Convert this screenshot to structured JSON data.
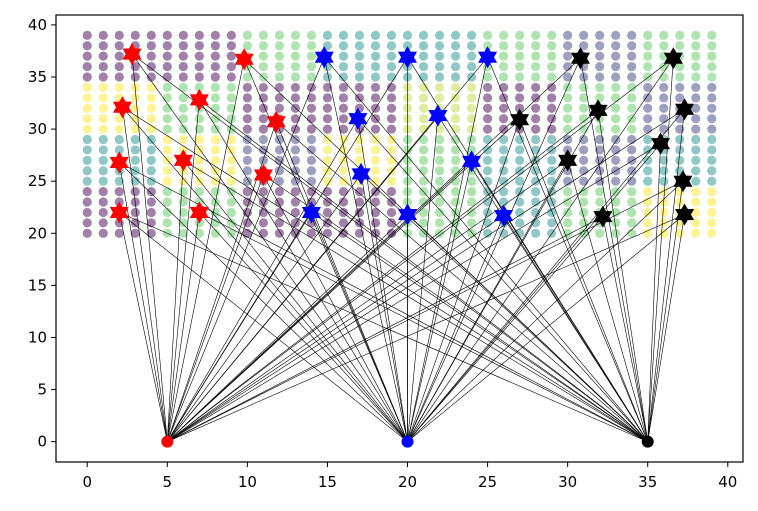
{
  "chart_data": {
    "type": "scatter",
    "title": "",
    "xlabel": "",
    "ylabel": "",
    "xlim": [
      -1.95,
      40.95
    ],
    "ylim": [
      -1.95,
      40.95
    ],
    "xticks": [
      0,
      5,
      10,
      15,
      20,
      25,
      30,
      35,
      40
    ],
    "yticks": [
      0,
      5,
      10,
      15,
      20,
      25,
      30,
      35,
      40
    ],
    "xtick_labels": [
      "0",
      "5",
      "10",
      "15",
      "20",
      "25",
      "30",
      "35",
      "40"
    ],
    "ytick_labels": [
      "0",
      "5",
      "10",
      "15",
      "20",
      "25",
      "30",
      "35",
      "40"
    ],
    "grid": false,
    "legend": "none",
    "background_grid": {
      "x_range": [
        0,
        39
      ],
      "y_range": [
        20,
        39
      ],
      "step": 1,
      "colormap": "viridis",
      "alpha": 0.5,
      "block_size": 5,
      "blocks": [
        {
          "x0": 0,
          "y0": 35,
          "value": 0.0
        },
        {
          "x0": 5,
          "y0": 35,
          "value": 0.0
        },
        {
          "x0": 10,
          "y0": 35,
          "value": 0.75
        },
        {
          "x0": 15,
          "y0": 35,
          "value": 0.5
        },
        {
          "x0": 20,
          "y0": 35,
          "value": 0.5
        },
        {
          "x0": 25,
          "y0": 35,
          "value": 0.75
        },
        {
          "x0": 30,
          "y0": 35,
          "value": 0.2
        },
        {
          "x0": 35,
          "y0": 35,
          "value": 0.75
        },
        {
          "x0": 0,
          "y0": 30,
          "value": 1.0
        },
        {
          "x0": 5,
          "y0": 30,
          "value": 0.75
        },
        {
          "x0": 10,
          "y0": 30,
          "value": 0.0
        },
        {
          "x0": 15,
          "y0": 30,
          "value": 0.0
        },
        {
          "x0": 20,
          "y0": 30,
          "value": 0.9
        },
        {
          "x0": 25,
          "y0": 30,
          "value": 0.0
        },
        {
          "x0": 30,
          "y0": 30,
          "value": 0.75
        },
        {
          "x0": 35,
          "y0": 30,
          "value": 0.2
        },
        {
          "x0": 0,
          "y0": 25,
          "value": 0.5
        },
        {
          "x0": 5,
          "y0": 25,
          "value": 1.0
        },
        {
          "x0": 10,
          "y0": 25,
          "value": 0.2
        },
        {
          "x0": 15,
          "y0": 25,
          "value": 1.0
        },
        {
          "x0": 20,
          "y0": 25,
          "value": 0.75
        },
        {
          "x0": 25,
          "y0": 25,
          "value": 0.5
        },
        {
          "x0": 30,
          "y0": 25,
          "value": 0.2
        },
        {
          "x0": 35,
          "y0": 25,
          "value": 0.5
        },
        {
          "x0": 0,
          "y0": 20,
          "value": 0.0
        },
        {
          "x0": 5,
          "y0": 20,
          "value": 0.75
        },
        {
          "x0": 10,
          "y0": 20,
          "value": 0.0
        },
        {
          "x0": 15,
          "y0": 20,
          "value": 0.0
        },
        {
          "x0": 20,
          "y0": 20,
          "value": 0.75
        },
        {
          "x0": 25,
          "y0": 20,
          "value": 0.5
        },
        {
          "x0": 30,
          "y0": 20,
          "value": 0.75
        },
        {
          "x0": 35,
          "y0": 20,
          "value": 1.0
        }
      ]
    },
    "series": [
      {
        "color": "#ff0000",
        "marker": "star",
        "hub": [
          5,
          0
        ],
        "points": [
          [
            2.8,
            37.2
          ],
          [
            9.8,
            36.7
          ],
          [
            2.2,
            32.1
          ],
          [
            7,
            32.8
          ],
          [
            11.8,
            30.7
          ],
          [
            2,
            26.8
          ],
          [
            6,
            27
          ],
          [
            11,
            25.6
          ],
          [
            2,
            22
          ],
          [
            7,
            22
          ]
        ]
      },
      {
        "color": "#0000ff",
        "marker": "star",
        "hub": [
          20,
          0
        ],
        "points": [
          [
            14.8,
            36.9
          ],
          [
            20,
            36.9
          ],
          [
            25,
            36.9
          ],
          [
            16.9,
            31
          ],
          [
            21.9,
            31.3
          ],
          [
            17.1,
            25.7
          ],
          [
            24,
            26.9
          ],
          [
            14,
            22
          ],
          [
            20,
            21.8
          ],
          [
            26,
            21.7
          ]
        ]
      },
      {
        "color": "#000000",
        "marker": "star",
        "hub": [
          35,
          0
        ],
        "points": [
          [
            30.8,
            36.8
          ],
          [
            36.6,
            36.8
          ],
          [
            31.9,
            31.8
          ],
          [
            37.3,
            31.9
          ],
          [
            27,
            30.9
          ],
          [
            30,
            27
          ],
          [
            35.8,
            28.6
          ],
          [
            37.2,
            25
          ],
          [
            32.2,
            21.6
          ],
          [
            37.3,
            21.8
          ]
        ]
      }
    ],
    "connections": "each hub connects with a thin black line to the five star markers of every series that share a line fan; lines drawn in black with width 0.6"
  }
}
